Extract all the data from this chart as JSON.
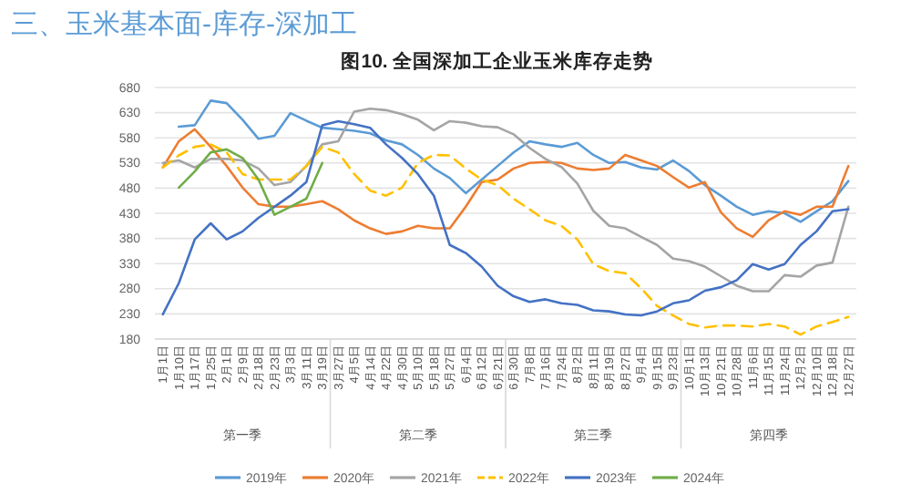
{
  "chart_data": {
    "type": "line",
    "title": "三、玉米基本面-库存-深加工",
    "subtitle": "图10. 全国深加工企业玉米库存走势",
    "categories": [
      "1月1日",
      "1月10日",
      "1月17日",
      "1月25日",
      "2月1日",
      "2月9日",
      "2月18日",
      "2月23日",
      "3月3日",
      "3月11日",
      "3月19日",
      "3月27日",
      "4月5日",
      "4月14日",
      "4月22日",
      "4月30日",
      "5月10日",
      "5月18日",
      "5月27日",
      "6月4日",
      "6月12日",
      "6月21日",
      "6月30日",
      "7月8日",
      "7月16日",
      "7月24日",
      "8月2日",
      "8月11日",
      "8月19日",
      "8月27日",
      "9月4日",
      "9月15日",
      "9月23日",
      "10月1日",
      "10月13日",
      "10月21日",
      "10月28日",
      "11月6日",
      "11月15日",
      "11月24日",
      "12月2日",
      "12月10日",
      "12月18日",
      "12月27日"
    ],
    "series": [
      {
        "name": "2019年",
        "color": "#5b9bd5",
        "values": [
          null,
          602,
          605,
          654,
          649,
          616,
          578,
          584,
          629,
          614,
          600,
          597,
          594,
          589,
          575,
          567,
          546,
          519,
          500,
          470,
          497,
          524,
          551,
          573,
          567,
          562,
          570,
          546,
          530,
          532,
          521,
          517,
          535,
          514,
          486,
          465,
          443,
          427,
          434,
          430,
          413,
          434,
          454,
          494
        ]
      },
      {
        "name": "2020年",
        "color": "#ed7d31",
        "values": [
          521,
          573,
          597,
          562,
          524,
          481,
          448,
          443,
          443,
          448,
          454,
          438,
          416,
          400,
          389,
          394,
          405,
          400,
          400,
          443,
          492,
          497,
          519,
          530,
          532,
          530,
          519,
          516,
          519,
          546,
          535,
          524,
          502,
          481,
          492,
          432,
          400,
          383,
          416,
          434,
          427,
          443,
          443,
          524
        ]
      },
      {
        "name": "2021年",
        "color": "#a5a5a5",
        "values": [
          530,
          535,
          521,
          538,
          538,
          535,
          519,
          486,
          492,
          524,
          567,
          573,
          632,
          638,
          635,
          627,
          616,
          595,
          613,
          610,
          603,
          601,
          587,
          560,
          538,
          522,
          489,
          435,
          405,
          400,
          383,
          367,
          340,
          335,
          324,
          305,
          286,
          275,
          275,
          307,
          304,
          326,
          332,
          443
        ]
      },
      {
        "name": "2022年",
        "color": "#ffc000",
        "line_style": "dashed",
        "values": [
          521,
          545,
          562,
          567,
          551,
          508,
          497,
          497,
          497,
          524,
          562,
          551,
          508,
          475,
          465,
          481,
          530,
          546,
          545,
          519,
          497,
          486,
          459,
          438,
          416,
          405,
          378,
          329,
          315,
          311,
          281,
          246,
          227,
          210,
          203,
          207,
          207,
          205,
          210,
          205,
          189,
          205,
          214,
          224
        ]
      },
      {
        "name": "2023年",
        "color": "#4472c4",
        "values": [
          229,
          291,
          378,
          410,
          378,
          394,
          421,
          443,
          465,
          492,
          605,
          613,
          607,
          600,
          567,
          540,
          508,
          465,
          367,
          351,
          324,
          286,
          265,
          254,
          259,
          251,
          248,
          237,
          235,
          229,
          227,
          235,
          251,
          257,
          276,
          283,
          297,
          329,
          318,
          329,
          367,
          394,
          434,
          438
        ]
      },
      {
        "name": "2024年",
        "color": "#70ad47",
        "values": [
          null,
          481,
          513,
          551,
          557,
          540,
          497,
          427,
          443,
          459,
          530,
          null,
          null,
          null,
          null,
          null,
          null,
          null,
          null,
          null,
          null,
          null,
          null,
          null,
          null,
          null,
          null,
          null,
          null,
          null,
          null,
          null,
          null,
          null,
          null,
          null,
          null,
          null,
          null,
          null,
          null,
          null,
          null,
          null
        ]
      }
    ],
    "ylim": [
      180,
      680
    ],
    "yticks": [
      180,
      230,
      280,
      330,
      380,
      430,
      480,
      530,
      580,
      630,
      680
    ],
    "grid": "y",
    "legend": "bottom",
    "line_style": "solid",
    "annotations": [
      "第一季",
      "第二季",
      "第三季",
      "第四季"
    ]
  }
}
